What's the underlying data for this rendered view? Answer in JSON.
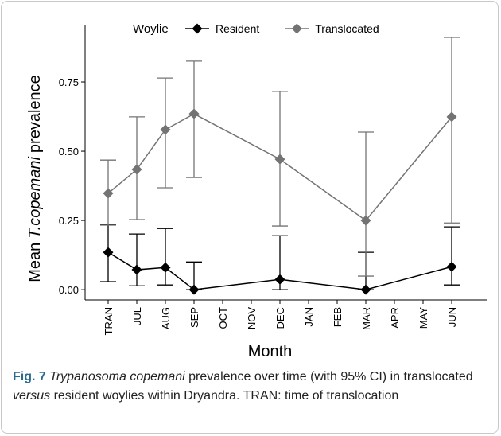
{
  "chart_data": {
    "type": "line",
    "legend_title": "Woylie",
    "legend": "top",
    "xlabel": "Month",
    "ylabel": [
      "Mean",
      "T.copemani",
      "prevalence"
    ],
    "categories": [
      "TRAN",
      "JUL",
      "AUG",
      "SEP",
      "OCT",
      "NOV",
      "DEC",
      "JAN",
      "FEB",
      "MAR",
      "APR",
      "MAY",
      "JUN"
    ],
    "ylim": [
      -0.037,
      0.954
    ],
    "yticks": [
      {
        "value": 0,
        "label": "0.00"
      },
      {
        "value": 0.25,
        "label": "0.25"
      },
      {
        "value": 0.5,
        "label": "0.50"
      },
      {
        "value": 0.75,
        "label": "0.75"
      }
    ],
    "series": [
      {
        "name": "Resident",
        "color": "#000000",
        "x": [
          "TRAN",
          "JUL",
          "AUG",
          "SEP",
          "DEC",
          "MAR",
          "JUN"
        ],
        "values": [
          0.135,
          0.072,
          0.08,
          0,
          0.037,
          0,
          0.083
        ],
        "lower": [
          0.029,
          0.014,
          0.017,
          0,
          0,
          0,
          0.017
        ],
        "upper": [
          0.236,
          0.201,
          0.221,
          0.1,
          0.195,
          0.135,
          0.227
        ]
      },
      {
        "name": "Translocated",
        "color": "#737373",
        "x": [
          "TRAN",
          "JUL",
          "AUG",
          "SEP",
          "DEC",
          "MAR",
          "JUN"
        ],
        "values": [
          0.348,
          0.434,
          0.578,
          0.635,
          0.471,
          0.25,
          0.624
        ],
        "lower": [
          0.233,
          0.253,
          0.368,
          0.405,
          0.23,
          0.049,
          0.241
        ],
        "upper": [
          0.468,
          0.624,
          0.764,
          0.825,
          0.716,
          0.569,
          0.911
        ]
      }
    ]
  },
  "caption": [
    {
      "text": "Fig. 7",
      "style": "bold"
    },
    {
      "text": "Trypanosoma copemani",
      "style": "italic"
    },
    {
      "text": "prevalence over time (with 95% CI) in translocated",
      "style": "normal"
    },
    {
      "text": "versus",
      "style": "italic"
    },
    {
      "text": "resident woylies within Dryandra. TRAN: time of translocation",
      "style": "normal"
    }
  ]
}
